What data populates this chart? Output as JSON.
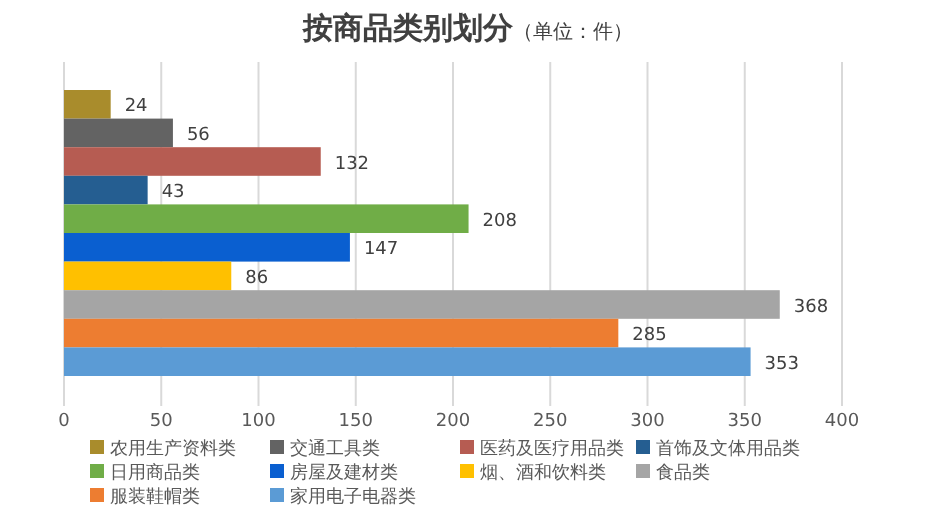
{
  "chart_data": {
    "type": "bar",
    "title": "按商品类别划分",
    "subtitle": "（单位：件）",
    "orientation": "horizontal",
    "categories": [
      null
    ],
    "series": [
      {
        "name": "农用生产资料类",
        "color": "#a98c2c",
        "values": [
          24
        ]
      },
      {
        "name": "交通工具类",
        "color": "#636363",
        "values": [
          56
        ]
      },
      {
        "name": "医药及医疗用品类",
        "color": "#b65c52",
        "values": [
          132
        ]
      },
      {
        "name": "首饰及文体用品类",
        "color": "#255e91",
        "values": [
          43
        ]
      },
      {
        "name": "日用商品类",
        "color": "#70ad47",
        "values": [
          208
        ]
      },
      {
        "name": "房屋及建材类",
        "color": "#0a5fd0",
        "values": [
          147
        ]
      },
      {
        "name": "烟、酒和饮料类",
        "color": "#ffc000",
        "values": [
          86
        ]
      },
      {
        "name": "食品类",
        "color": "#a5a5a5",
        "values": [
          368
        ]
      },
      {
        "name": "服装鞋帽类",
        "color": "#ed7d31",
        "values": [
          285
        ]
      },
      {
        "name": "家用电子电器类",
        "color": "#5b9bd5",
        "values": [
          353
        ]
      }
    ],
    "xlim": [
      0,
      400
    ],
    "xticks": [
      0,
      50,
      100,
      150,
      200,
      250,
      300,
      350,
      400
    ],
    "grid": "x",
    "legend": "bottom",
    "data_labels": true
  }
}
